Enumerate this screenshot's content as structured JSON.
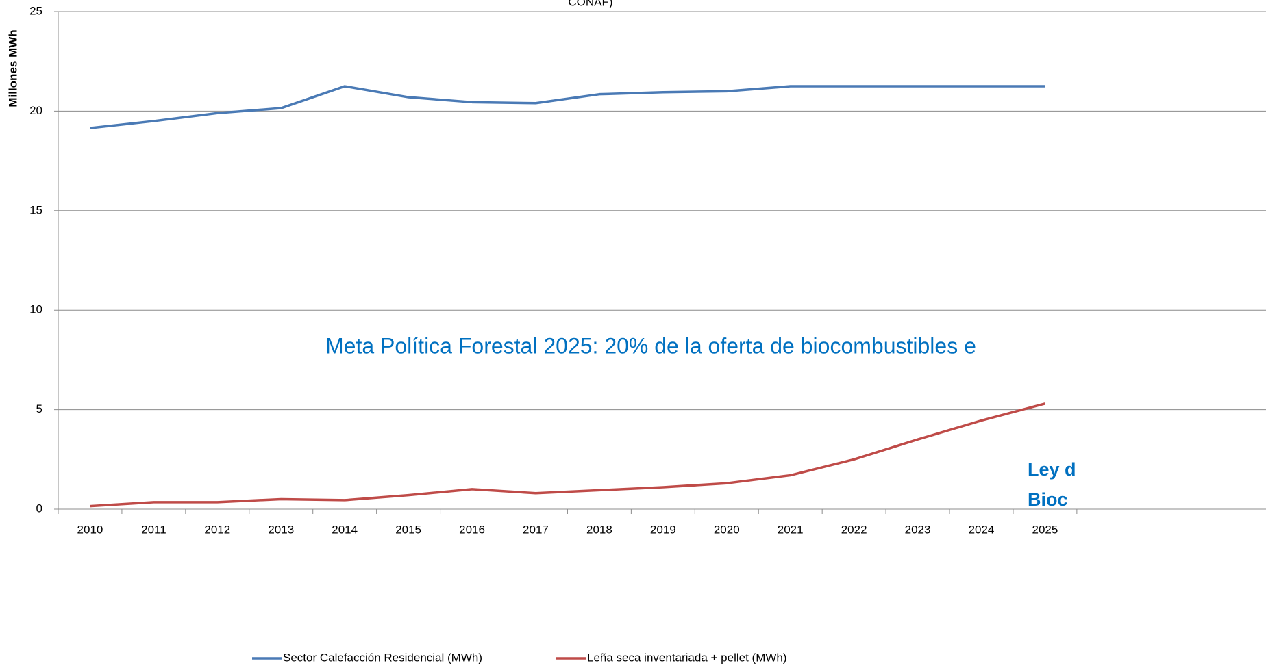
{
  "chart_data": {
    "type": "line",
    "title": "CONAF)",
    "y_label": "Millones MWh",
    "categories": [
      "2010",
      "2011",
      "2012",
      "2013",
      "2014",
      "2015",
      "2016",
      "2017",
      "2018",
      "2019",
      "2020",
      "2021",
      "2022",
      "2023",
      "2024",
      "2025"
    ],
    "series": [
      {
        "name": "Sector Calefacción Residencial (MWh)",
        "color": "#4a7ab5",
        "values": [
          19.15,
          19.5,
          19.9,
          20.15,
          21.25,
          20.7,
          20.45,
          20.4,
          20.85,
          20.95,
          21.0,
          21.25,
          21.25,
          21.25,
          21.25,
          21.25
        ]
      },
      {
        "name": "Leña seca inventariada + pellet (MWh)",
        "color": "#bf4b48",
        "values": [
          0.15,
          0.35,
          0.35,
          0.5,
          0.45,
          0.7,
          1.0,
          0.8,
          0.95,
          1.1,
          1.3,
          1.7,
          2.5,
          3.5,
          4.45,
          5.3
        ]
      }
    ],
    "ylim": [
      0,
      25
    ],
    "yticks": [
      0,
      5,
      10,
      15,
      20,
      25
    ],
    "grid": true,
    "annotations": [
      {
        "text": "Meta Política Forestal 2025: 20% de la oferta de biocombustibles e",
        "color": "#0070c0"
      },
      {
        "text": "Ley d",
        "color": "#0070c0"
      },
      {
        "text": "Bioc",
        "color": "#0070c0"
      }
    ],
    "legend": "bottom"
  }
}
